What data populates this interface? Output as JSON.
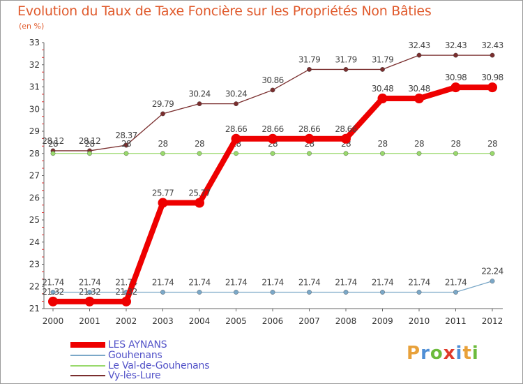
{
  "header": {
    "title": "Evolution du Taux de Taxe Foncière sur les Propriétés Non Bâties",
    "unit_label": "(en %)"
  },
  "chart_data": {
    "type": "line",
    "title": "Evolution du Taux de Taxe Foncière sur les Propriétés Non Bâties",
    "ylabel": "(en %)",
    "xlabel": "",
    "ylim": [
      21,
      33
    ],
    "yticks": [
      "21",
      "22",
      "23",
      "24",
      "25",
      "26",
      "27",
      "28",
      "29",
      "30",
      "31",
      "32",
      "33"
    ],
    "grid": false,
    "legend_position": "bottom-left",
    "categories": [
      "2000",
      "2001",
      "2002",
      "2003",
      "2004",
      "2005",
      "2006",
      "2007",
      "2008",
      "2009",
      "2010",
      "2011",
      "2012"
    ],
    "series": [
      {
        "name": "Vy-lès-Lure",
        "color": "#7a2e2e",
        "values": [
          28.12,
          28.12,
          28.37,
          29.79,
          30.24,
          30.24,
          30.86,
          31.79,
          31.79,
          31.79,
          32.43,
          32.43,
          32.43
        ],
        "labels": [
          "28.12",
          "28.12",
          "28.37",
          "29.79",
          "30.24",
          "30.24",
          "30.86",
          "31.79",
          "31.79",
          "31.79",
          "32.43",
          "32.43",
          "32.43"
        ]
      },
      {
        "name": "Le Val-de-Gouhenans",
        "color": "#99d96c",
        "values": [
          28,
          28,
          28,
          28,
          28,
          28,
          28,
          28,
          28,
          28,
          28,
          28,
          28
        ],
        "labels": [
          "28",
          "28",
          "28",
          "28",
          "28",
          "28",
          "28",
          "28",
          "28",
          "28",
          "28",
          "28",
          "28"
        ]
      },
      {
        "name": "Gouhenans",
        "color": "#7ba8c8",
        "values": [
          21.74,
          21.74,
          21.74,
          21.74,
          21.74,
          21.74,
          21.74,
          21.74,
          21.74,
          21.74,
          21.74,
          21.74,
          22.24
        ],
        "labels": [
          "21.74",
          "21.74",
          "21.74",
          "21.74",
          "21.74",
          "21.74",
          "21.74",
          "21.74",
          "21.74",
          "21.74",
          "21.74",
          "21.74",
          "22.24"
        ]
      },
      {
        "name": "LES AYNANS",
        "color": "#ee0000",
        "values": [
          21.32,
          21.32,
          21.32,
          25.77,
          25.77,
          28.66,
          28.66,
          28.66,
          28.66,
          30.48,
          30.48,
          30.98,
          30.98
        ],
        "labels": [
          "21.32",
          "21.32",
          "21.32",
          "25.77",
          "25.77",
          "28.66",
          "28.66",
          "28.66",
          "28.66",
          "30.48",
          "30.48",
          "30.98",
          "30.98"
        ]
      }
    ]
  },
  "legend": {
    "items": [
      {
        "label": "LES AYNANS",
        "color": "#ee0000"
      },
      {
        "label": "Gouhenans",
        "color": "#7ba8c8"
      },
      {
        "label": "Le Val-de-Gouhenans",
        "color": "#99d96c"
      },
      {
        "label": "Vy-lès-Lure",
        "color": "#7a2e2e"
      }
    ]
  },
  "logo": {
    "text": "Proxiti",
    "letter_colors": [
      "#e8a13a",
      "#4f8fd6",
      "#6cbb3c",
      "#e03a2a",
      "#4f8fd6",
      "#e8a13a",
      "#6cbb3c"
    ]
  }
}
